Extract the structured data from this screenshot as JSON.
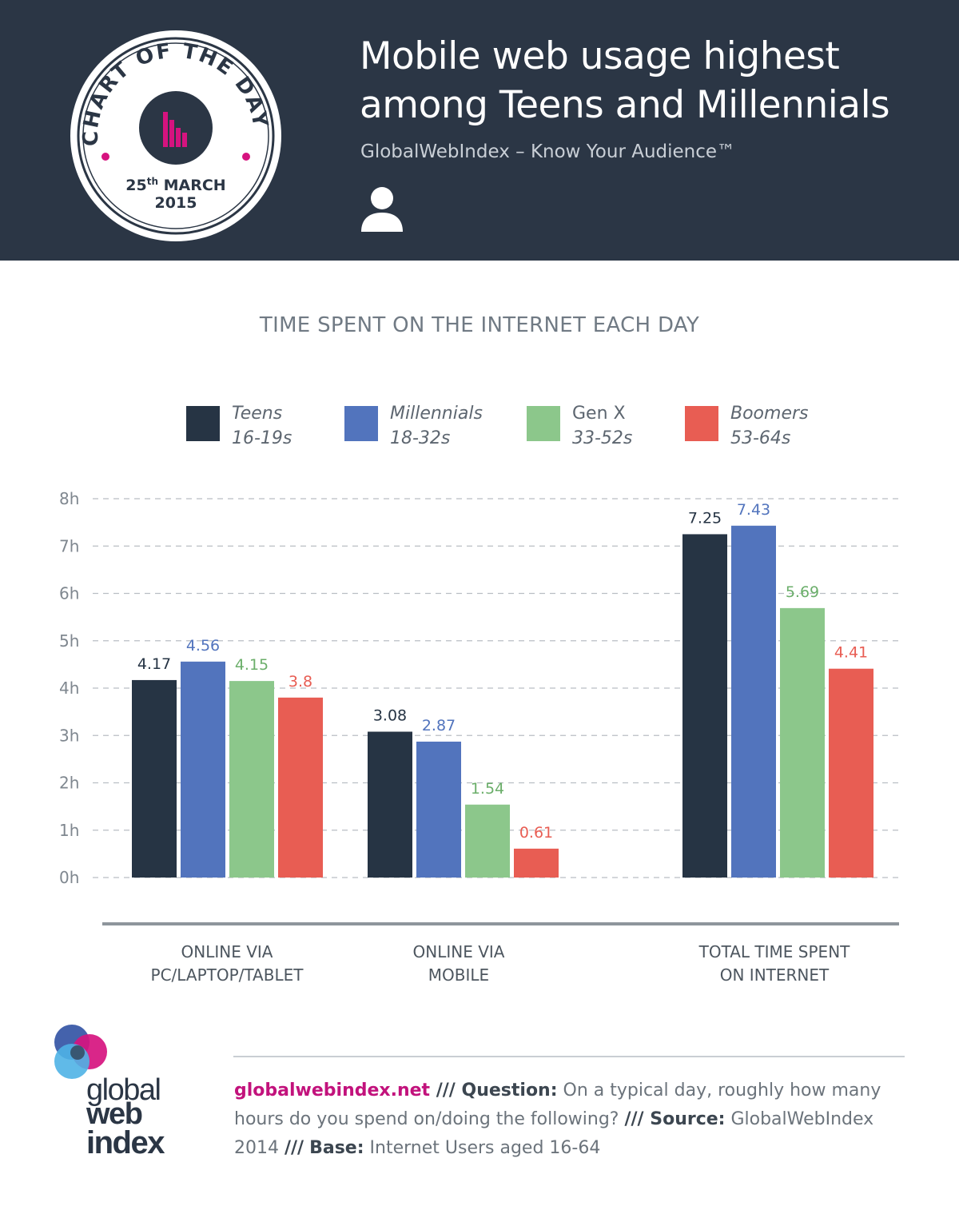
{
  "header": {
    "badge": {
      "arc_text": "CHART OF THE DAY",
      "day": "25",
      "day_suffix": "th",
      "month": "MARCH",
      "year": "2015"
    },
    "title_line1": "Mobile web usage highest",
    "title_line2": "among Teens and Millennials",
    "subtitle": "GlobalWebIndex – Know Your Audience™",
    "icon": "person-icon"
  },
  "chart_data": {
    "type": "bar",
    "title": "TIME SPENT ON THE INTERNET EACH DAY",
    "categories": [
      "ONLINE VIA PC/LAPTOP/TABLET",
      "ONLINE VIA MOBILE",
      "TOTAL TIME SPENT ON INTERNET"
    ],
    "category_lines": [
      [
        "ONLINE VIA",
        "PC/LAPTOP/TABLET"
      ],
      [
        "ONLINE VIA",
        "MOBILE"
      ],
      [
        "TOTAL TIME SPENT",
        "ON INTERNET"
      ]
    ],
    "series": [
      {
        "name": "Teens",
        "range": "16-19s",
        "color": "#263444",
        "values": [
          4.17,
          3.08,
          7.25
        ]
      },
      {
        "name": "Millennials",
        "range": "18-32s",
        "color": "#5274bd",
        "values": [
          4.56,
          2.87,
          7.43
        ]
      },
      {
        "name": "Gen X",
        "range": "33-52s",
        "color": "#8cc78b",
        "values": [
          4.15,
          1.54,
          5.69
        ]
      },
      {
        "name": "Boomers",
        "range": "53-64s",
        "color": "#e85d53",
        "values": [
          3.8,
          0.61,
          4.41
        ]
      }
    ],
    "value_labels": [
      [
        "4.17",
        "3.08",
        "7.25"
      ],
      [
        "4.56",
        "2.87",
        "7.43"
      ],
      [
        "4.15",
        "1.54",
        "5.69"
      ],
      [
        "3.8",
        "0.61",
        "4.41"
      ]
    ],
    "label_colors": [
      "#263444",
      "#5274bd",
      "#6bae6a",
      "#e85d53"
    ],
    "y_ticks": [
      "0h",
      "1h",
      "2h",
      "3h",
      "4h",
      "5h",
      "6h",
      "7h",
      "8h"
    ],
    "ylim": [
      0,
      8
    ],
    "grid": true,
    "legend_position": "top"
  },
  "footer": {
    "logo": {
      "line1": "global",
      "line2": "web",
      "line3": "index"
    },
    "site": "globalwebindex.net",
    "sep1": " /// ",
    "question_label": "Question:",
    "question_text": " On a typical day, roughly how many hours do you spend on/doing the following? ",
    "sep2": " /// ",
    "source_label": "Source:",
    "source_text": " GlobalWebIndex 2014 ",
    "sep3": "///",
    "base_label": "Base:",
    "base_text": " Internet Users aged 16-64"
  }
}
